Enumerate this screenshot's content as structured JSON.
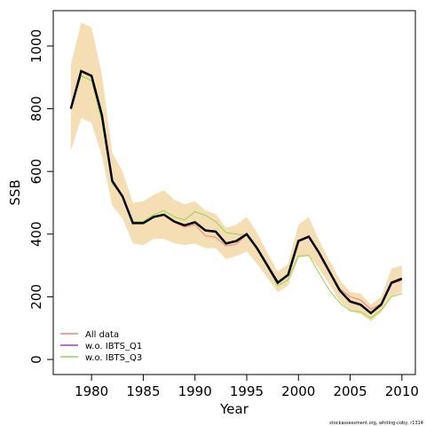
{
  "chart_data": {
    "type": "line",
    "x_label": "Year",
    "y_label": "SSB",
    "footnote": "stockassessment.org, whiting-coby, r1314",
    "x": [
      1978,
      1979,
      1980,
      1981,
      1982,
      1983,
      1984,
      1985,
      1986,
      1987,
      1988,
      1989,
      1990,
      1991,
      1992,
      1993,
      1994,
      1995,
      1996,
      1997,
      1998,
      1999,
      2000,
      2001,
      2002,
      2003,
      2004,
      2005,
      2006,
      2007,
      2008,
      2009,
      2010
    ],
    "band": {
      "color": "#f5deb3",
      "upper": [
        940,
        1075,
        1060,
        910,
        660,
        600,
        500,
        505,
        525,
        540,
        510,
        495,
        505,
        475,
        465,
        420,
        430,
        455,
        405,
        340,
        280,
        305,
        430,
        455,
        380,
        315,
        255,
        215,
        210,
        175,
        200,
        290,
        300
      ],
      "lower": [
        665,
        770,
        755,
        650,
        490,
        450,
        370,
        365,
        385,
        385,
        370,
        365,
        370,
        355,
        355,
        320,
        330,
        345,
        305,
        260,
        215,
        235,
        325,
        330,
        290,
        240,
        185,
        155,
        145,
        122,
        150,
        200,
        215
      ]
    },
    "series": [
      {
        "name": "All data",
        "color": "#f08080",
        "values": [
          800,
          918,
          902,
          778,
          568,
          520,
          435,
          435,
          455,
          462,
          438,
          422,
          430,
          395,
          390,
          362,
          368,
          398,
          352,
          298,
          245,
          270,
          376,
          390,
          338,
          282,
          225,
          200,
          190,
          160,
          178,
          242,
          252
        ]
      },
      {
        "name": "w.o. IBTS_Q1",
        "color": "#a040c0",
        "values": [
          800,
          920,
          904,
          780,
          570,
          520,
          435,
          435,
          455,
          462,
          440,
          426,
          436,
          410,
          406,
          368,
          376,
          400,
          355,
          300,
          245,
          270,
          378,
          392,
          340,
          280,
          220,
          185,
          176,
          148,
          175,
          245,
          258
        ]
      },
      {
        "name": "w.o. IBTS_Q3",
        "color": "#90d850",
        "values": [
          800,
          905,
          890,
          760,
          560,
          525,
          440,
          440,
          462,
          475,
          455,
          445,
          472,
          460,
          440,
          405,
          400,
          395,
          350,
          295,
          235,
          255,
          330,
          332,
          275,
          220,
          180,
          155,
          152,
          132,
          158,
          200,
          210
        ]
      },
      {
        "color": "#000000",
        "width": 2.5,
        "values": [
          800,
          920,
          905,
          780,
          570,
          520,
          435,
          435,
          455,
          462,
          440,
          428,
          438,
          412,
          408,
          370,
          378,
          400,
          355,
          300,
          245,
          270,
          378,
          392,
          340,
          280,
          220,
          185,
          175,
          148,
          175,
          245,
          258
        ]
      }
    ],
    "xlim": [
      1976.3,
      2011.3
    ],
    "ylim": [
      -48,
      1113
    ],
    "xticks": [
      1980,
      1985,
      1990,
      1995,
      2000,
      2005,
      2010
    ],
    "yticks": [
      0,
      200,
      400,
      600,
      800,
      1000
    ],
    "legend": "bottom-left"
  }
}
